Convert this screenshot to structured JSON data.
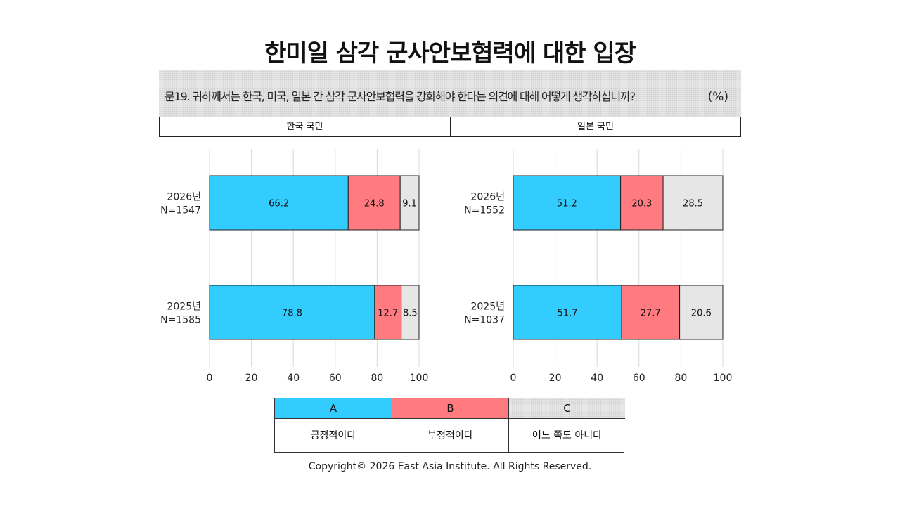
{
  "title": "한미일 삼각 군사안보협력에 대한 입장",
  "question": "문19. 귀하께서는 한국, 미국, 일본 간 삼각 군사안보협력을 강화해야 한다는 의견에 대해 어떻게 생각하십니까?",
  "unit": "(%)",
  "panels": {
    "korea": "한국 국민",
    "japan": "일본 국민"
  },
  "colors": {
    "A": "#33ccff",
    "B": "#ff7b7f",
    "C": "#e6e6e6"
  },
  "legend": {
    "keys": [
      "A",
      "B",
      "C"
    ],
    "labels": [
      "긍정적이다",
      "부정적이다",
      "어느 쪽도 아니다"
    ]
  },
  "copyright": "Copyright© 2026 East Asia Institute. All Rights Reserved.",
  "chart_data": [
    {
      "type": "bar",
      "panel": "한국 국민",
      "categories": [
        [
          "2026년",
          "N=1547"
        ],
        [
          "2025년",
          "N=1585"
        ]
      ],
      "series": [
        {
          "name": "A",
          "values": [
            66.2,
            78.8
          ]
        },
        {
          "name": "B",
          "values": [
            24.8,
            12.7
          ]
        },
        {
          "name": "C",
          "values": [
            9.1,
            8.5
          ]
        }
      ],
      "xlim": [
        0,
        100
      ],
      "xticks": [
        0,
        20,
        40,
        60,
        80,
        100
      ],
      "stacked": true,
      "orientation": "horizontal",
      "grid": true
    },
    {
      "type": "bar",
      "panel": "일본 국민",
      "categories": [
        [
          "2026년",
          "N=1552"
        ],
        [
          "2025년",
          "N=1037"
        ]
      ],
      "series": [
        {
          "name": "A",
          "values": [
            51.2,
            51.7
          ]
        },
        {
          "name": "B",
          "values": [
            20.3,
            27.7
          ]
        },
        {
          "name": "C",
          "values": [
            28.5,
            20.6
          ]
        }
      ],
      "xlim": [
        0,
        100
      ],
      "xticks": [
        0,
        20,
        40,
        60,
        80,
        100
      ],
      "stacked": true,
      "orientation": "horizontal",
      "grid": true
    }
  ]
}
